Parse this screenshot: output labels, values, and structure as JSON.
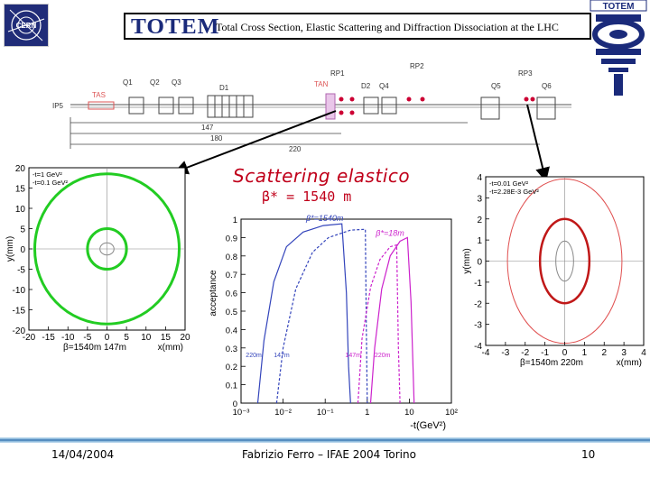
{
  "header": {
    "logo_word": "TOTEM",
    "title": "Total Cross Section, Elastic Scattering and Diffraction Dissociation at the LHC"
  },
  "logos": {
    "left": "CERN",
    "right": "TOTEM"
  },
  "beamline": {
    "ip_label": "IP5",
    "element_labels": [
      "Q1",
      "Q2",
      "Q3",
      "TAS",
      "D1",
      "TAN",
      "D2",
      "Q4",
      "Q5",
      "Q6",
      "RP1",
      "RP2",
      "RP3"
    ],
    "distance_labels": [
      "147",
      "180",
      "220"
    ]
  },
  "slide": {
    "title": "Scattering elastico",
    "beta_label": "β* = 1540 m"
  },
  "chart_data": [
    {
      "type": "scatter",
      "legend": [
        "-t=1 GeV²",
        "-t=0.1 GeV²"
      ],
      "ylabel": "y(mm)",
      "xlabel": "x(mm)",
      "x_ticks": [
        "-20",
        "-15",
        "-10",
        "-5",
        "0",
        "5",
        "10",
        "15",
        "20"
      ],
      "y_ticks": [
        "20",
        "15",
        "10",
        "5",
        "0",
        "-5",
        "-10",
        "-15",
        "-20"
      ],
      "xlim": [
        -20,
        20
      ],
      "ylim": [
        -20,
        20
      ],
      "footnote": "β=1540m 147m",
      "rings": [
        {
          "rx": 18.5,
          "ry": 18.5,
          "color": "#22cc22",
          "width": 3
        },
        {
          "rx": 5,
          "ry": 5,
          "color": "#22cc22",
          "width": 3
        },
        {
          "rx": 1.8,
          "ry": 1.5,
          "color": "#888888",
          "width": 1
        }
      ]
    },
    {
      "type": "line",
      "ylabel": "acceptance",
      "xlabel": "-t(GeV²)",
      "x_scale": "log",
      "xlim": [
        0.001,
        100
      ],
      "ylim": [
        0,
        1
      ],
      "x_ticks": [
        "10⁻³",
        "10⁻²",
        "10⁻¹",
        "1",
        "10",
        "10²"
      ],
      "y_ticks": [
        "0",
        "0.1",
        "0.2",
        "0.3",
        "0.4",
        "0.5",
        "0.6",
        "0.7",
        "0.8",
        "0.9",
        "1"
      ],
      "annotations": [
        "β*=1540m",
        "β*=18m"
      ],
      "series": [
        {
          "name": "220m",
          "color": "#3344bb",
          "dash": false,
          "points": [
            [
              0.0025,
              0
            ],
            [
              0.0035,
              0.34
            ],
            [
              0.006,
              0.66
            ],
            [
              0.012,
              0.85
            ],
            [
              0.03,
              0.93
            ],
            [
              0.09,
              0.965
            ],
            [
              0.25,
              0.975
            ],
            [
              0.32,
              0.6
            ],
            [
              0.36,
              0.2
            ],
            [
              0.4,
              0
            ]
          ]
        },
        {
          "name": "147m",
          "color": "#3344bb",
          "dash": true,
          "points": [
            [
              0.007,
              0
            ],
            [
              0.01,
              0.3
            ],
            [
              0.02,
              0.62
            ],
            [
              0.05,
              0.82
            ],
            [
              0.12,
              0.9
            ],
            [
              0.4,
              0.94
            ],
            [
              0.9,
              0.945
            ],
            [
              0.95,
              0.4
            ],
            [
              1.0,
              0
            ]
          ]
        },
        {
          "name": "147m",
          "color": "#cc22cc",
          "dash": true,
          "points": [
            [
              0.6,
              0
            ],
            [
              0.75,
              0.35
            ],
            [
              1.2,
              0.63
            ],
            [
              2,
              0.78
            ],
            [
              3.5,
              0.85
            ],
            [
              5,
              0.86
            ],
            [
              5.5,
              0.3
            ],
            [
              6,
              0
            ]
          ]
        },
        {
          "name": "220m",
          "color": "#cc22cc",
          "dash": false,
          "points": [
            [
              1.2,
              0
            ],
            [
              1.5,
              0.3
            ],
            [
              2.2,
              0.62
            ],
            [
              3.5,
              0.8
            ],
            [
              6,
              0.88
            ],
            [
              9,
              0.9
            ],
            [
              11,
              0.55
            ],
            [
              13,
              0
            ]
          ]
        }
      ]
    },
    {
      "type": "scatter",
      "legend": [
        "-t=0.01 GeV²",
        "-t=2.28E-3 GeV²"
      ],
      "ylabel": "y(mm)",
      "xlabel": "x(mm)",
      "x_ticks": [
        "-4",
        "-3",
        "-2",
        "-1",
        "0",
        "1",
        "2",
        "3",
        "4"
      ],
      "y_ticks": [
        "4",
        "3",
        "2",
        "1",
        "0",
        "-1",
        "-2",
        "-3",
        "-4"
      ],
      "xlim": [
        -4,
        4
      ],
      "ylim": [
        -4,
        4
      ],
      "footnote": "β=1540m 220m",
      "rings": [
        {
          "rx": 2.9,
          "ry": 3.9,
          "color": "#e05050",
          "width": 1
        },
        {
          "rx": 1.25,
          "ry": 2.0,
          "color": "#c01818",
          "width": 2.5
        },
        {
          "rx": 0.45,
          "ry": 0.95,
          "color": "#888888",
          "width": 1
        }
      ]
    }
  ],
  "footer": {
    "date": "14/04/2004",
    "author": "Fabrizio Ferro – IFAE 2004 Torino",
    "page": "10"
  }
}
